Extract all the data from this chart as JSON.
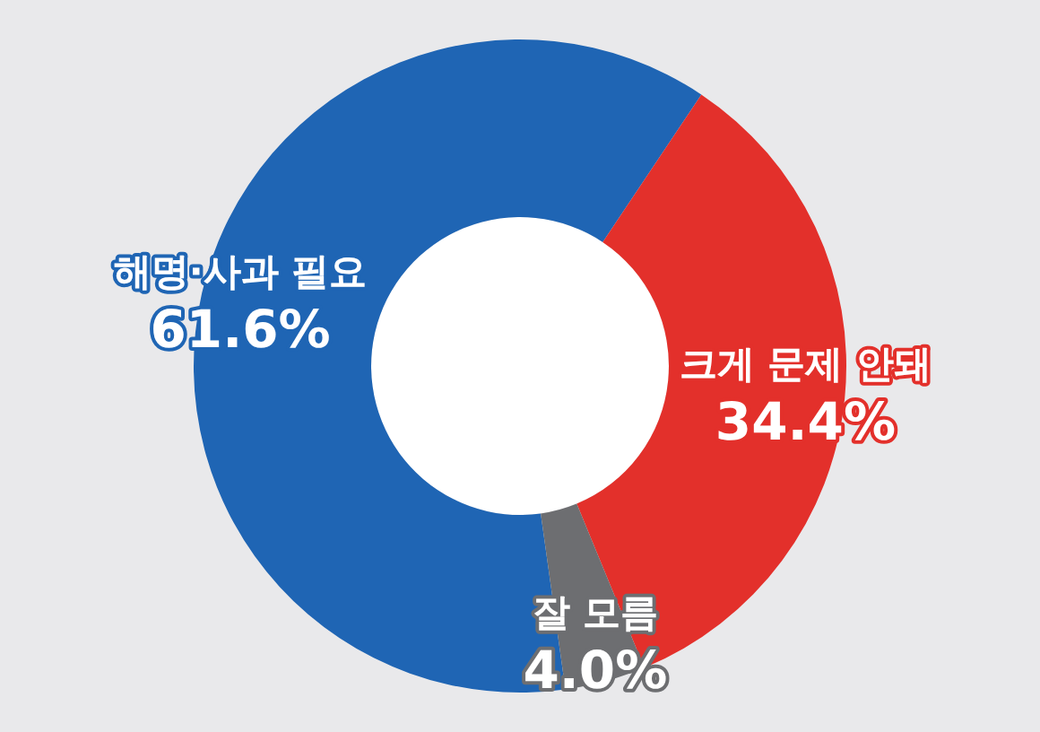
{
  "chart_data": {
    "type": "donut",
    "categories": [
      "해명·사과 필요",
      "크게 문제 안돼",
      "잘 모름"
    ],
    "values": [
      61.6,
      34.4,
      4.0
    ],
    "colors": [
      "#1f65b4",
      "#e3302b",
      "#6d6e71"
    ],
    "value_labels": [
      "61.6%",
      "34.4%",
      "4.0%"
    ]
  }
}
